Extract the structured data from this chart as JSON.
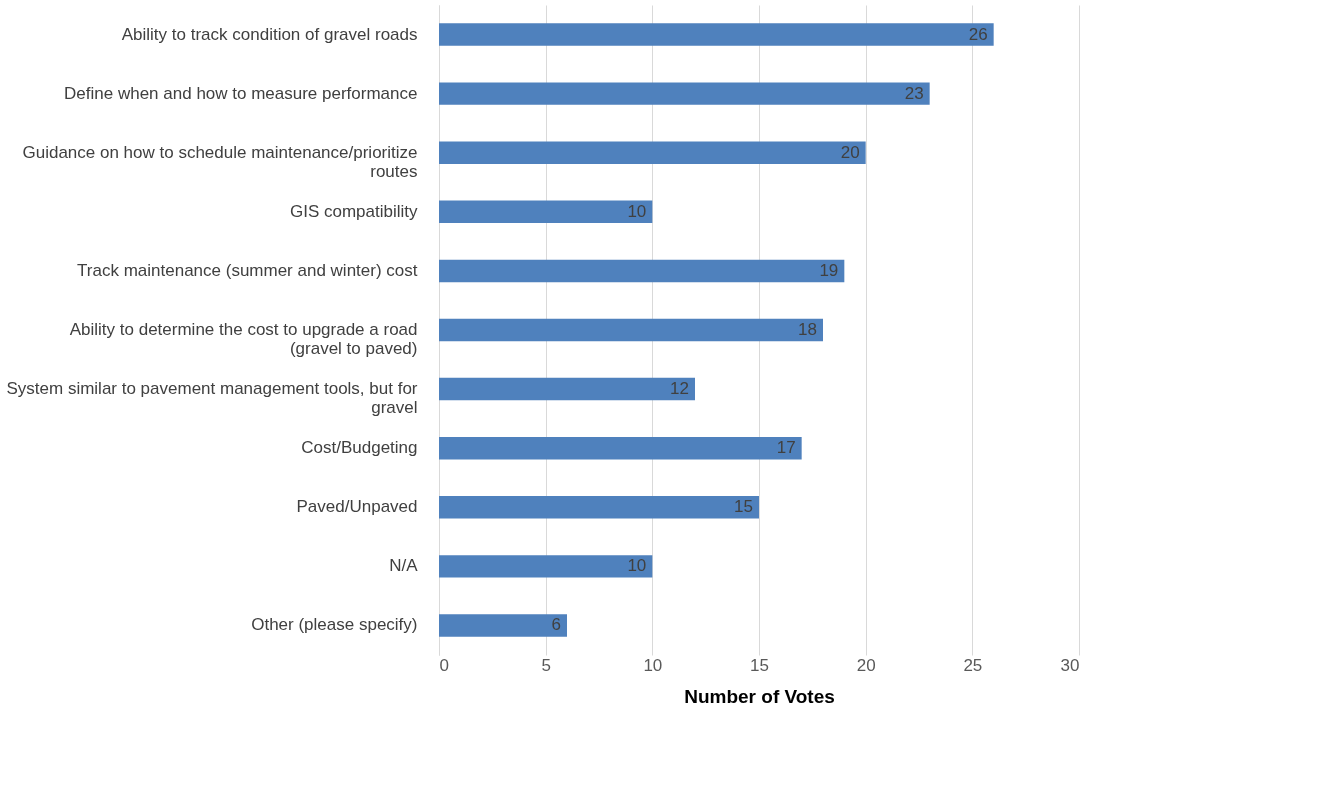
{
  "chart_data": {
    "type": "bar",
    "orientation": "horizontal",
    "xlabel": "Number of Votes",
    "categories": [
      "Ability to track condition of gravel roads",
      "Define when and how to measure performance",
      "Guidance on how to schedule maintenance/prioritize routes",
      "GIS compatibility",
      "Track maintenance (summer and winter) cost",
      "Ability to determine the cost to upgrade a road (gravel to paved)",
      "System similar to pavement management tools, but for gravel",
      "Cost/Budgeting",
      "Paved/Unpaved",
      "N/A",
      "Other (please specify)"
    ],
    "values": [
      26,
      23,
      20,
      10,
      19,
      18,
      12,
      17,
      15,
      10,
      6
    ],
    "color": "#4f81bd",
    "xlim": [
      0,
      30
    ],
    "xticks": [
      0,
      5,
      10,
      15,
      20,
      25,
      30
    ],
    "grid": "x",
    "data_labels": true
  }
}
